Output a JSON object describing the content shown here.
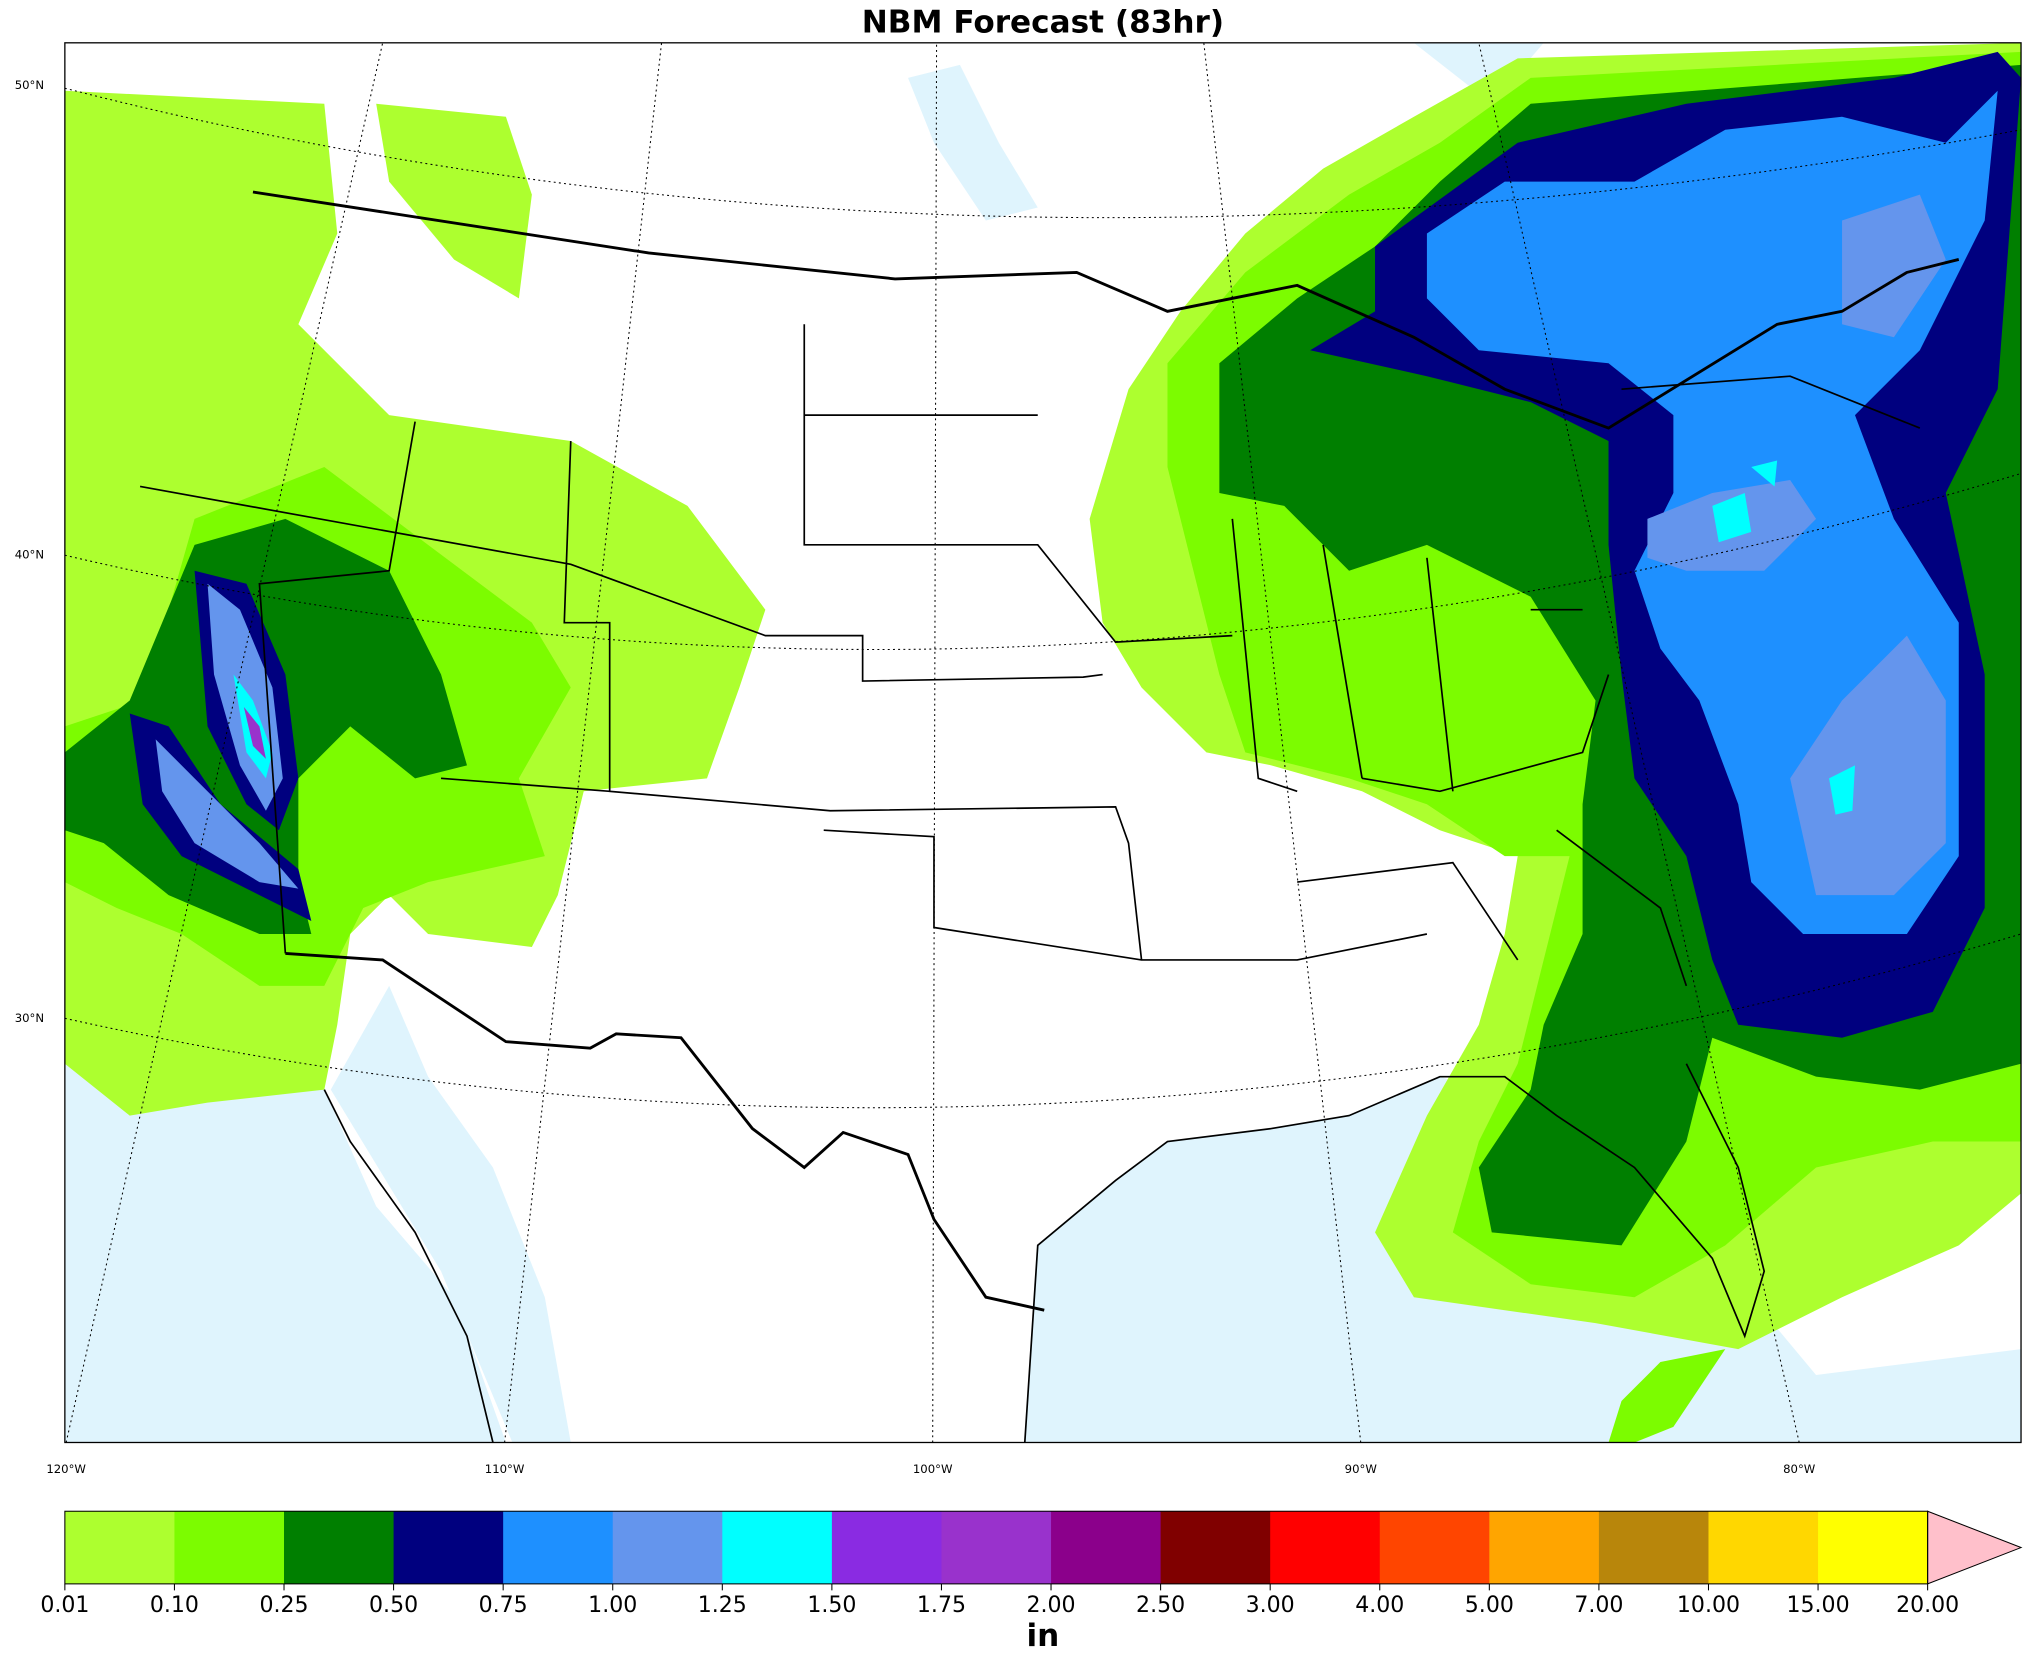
{
  "title": "NBM Forecast (83hr)",
  "map": {
    "lat_labels": [
      "50°N",
      "40°N",
      "30°N"
    ],
    "lon_labels": [
      "120°W",
      "110°W",
      "100°W",
      "90°W",
      "80°W"
    ]
  },
  "colorbar": {
    "ticks": [
      0.01,
      {
        "value": 0.1,
        "label": "0.10"
      },
      0.25,
      {
        "value": 0.5,
        "label": "0.50"
      },
      0.75,
      {
        "value": 1,
        "label": "1.00"
      },
      1.25,
      {
        "value": 1.5,
        "label": "1.50"
      },
      1.75,
      {
        "value": 2,
        "label": "2.00"
      },
      {
        "value": 2.5,
        "label": "2.50"
      },
      {
        "value": 3,
        "label": "3.00"
      },
      {
        "value": 4,
        "label": "4.00"
      },
      {
        "value": 5,
        "label": "5.00"
      },
      {
        "value": 7,
        "label": "7.00"
      },
      {
        "value": 10,
        "label": "10.00"
      },
      {
        "value": 15,
        "label": "15.00"
      },
      {
        "value": 20,
        "label": "20.00"
      }
    ],
    "colors": [
      "#adff2f",
      "#7cfc00",
      "#007f00",
      "#00007f",
      "#1e90ff",
      "#6495ed",
      "#00ffff",
      "#8a2be2",
      "#9932cc",
      "#8b008b",
      "#800000",
      "#ff0000",
      "#ff4500",
      "#ffa500",
      "#b8860b",
      "#ffd700",
      "#ffff00"
    ],
    "extend_color": "#ffc0cb",
    "unit": "in"
  }
}
